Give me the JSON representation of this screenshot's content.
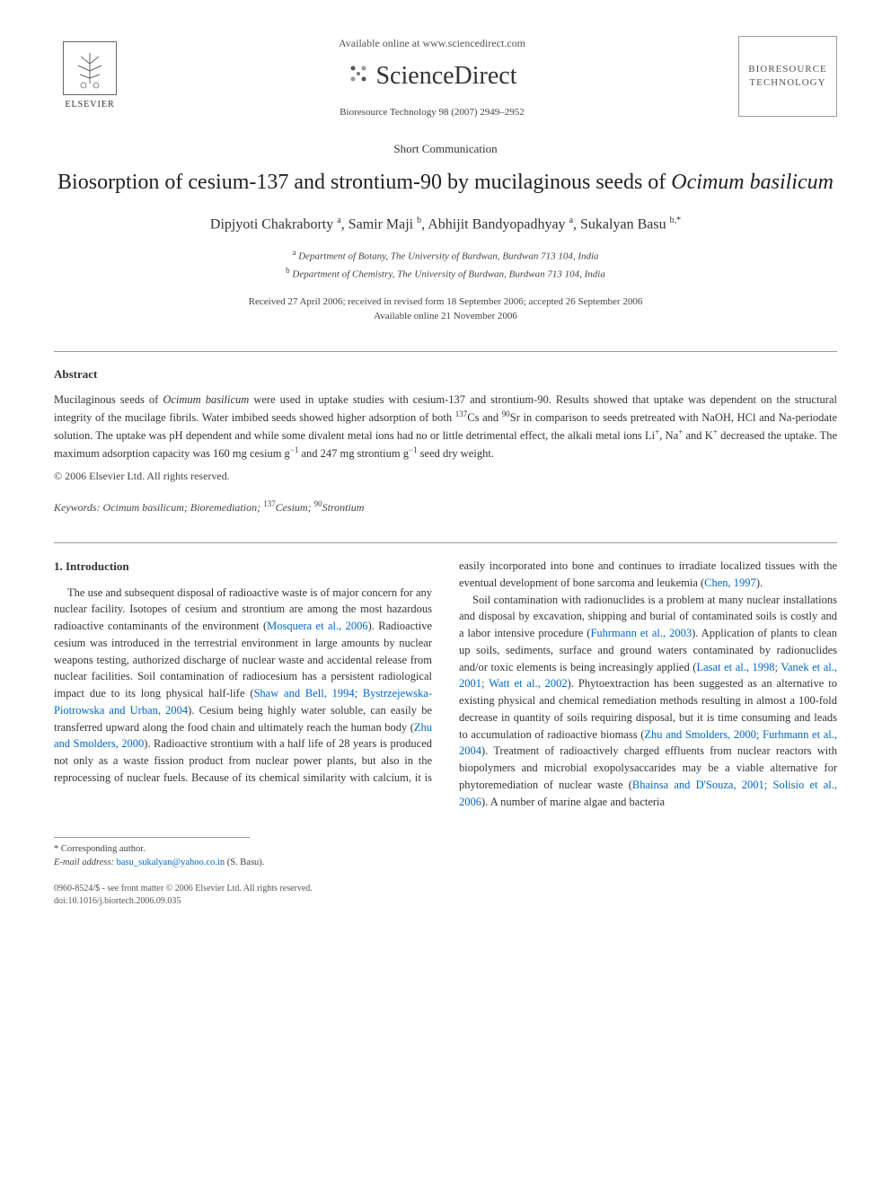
{
  "header": {
    "available_online": "Available online at www.sciencedirect.com",
    "sciencedirect": "ScienceDirect",
    "journal_ref": "Bioresource Technology 98 (2007) 2949–2952",
    "elsevier": "ELSEVIER",
    "journal_cover_line1": "BIORESOURCE",
    "journal_cover_line2": "TECHNOLOGY"
  },
  "article": {
    "type": "Short Communication",
    "title_prefix": "Biosorption of cesium-137 and strontium-90 by mucilaginous seeds of ",
    "title_species": "Ocimum basilicum",
    "authors_html": "Dipjyoti Chakraborty <sup>a</sup>, Samir Maji <sup>b</sup>, Abhijit Bandyopadhyay <sup>a</sup>, Sukalyan Basu <sup>b,*</sup>",
    "affiliation_a": "Department of Botany, The University of Burdwan, Burdwan 713 104, India",
    "affiliation_b": "Department of Chemistry, The University of Burdwan, Burdwan 713 104, India",
    "dates_line1": "Received 27 April 2006; received in revised form 18 September 2006; accepted 26 September 2006",
    "dates_line2": "Available online 21 November 2006"
  },
  "abstract": {
    "heading": "Abstract",
    "text": "Mucilaginous seeds of <i>Ocimum basilicum</i> were used in uptake studies with cesium-137 and strontium-90. Results showed that uptake was dependent on the structural integrity of the mucilage fibrils. Water imbibed seeds showed higher adsorption of both <sup>137</sup>Cs and <sup>90</sup>Sr in comparison to seeds pretreated with NaOH, HCl and Na-periodate solution. The uptake was pH dependent and while some divalent metal ions had no or little detrimental effect, the alkali metal ions Li<sup>+</sup>, Na<sup>+</sup> and K<sup>+</sup> decreased the uptake. The maximum adsorption capacity was 160 mg cesium g<sup>−1</sup> and 247 mg strontium g<sup>−1</sup> seed dry weight.",
    "copyright": "© 2006 Elsevier Ltd. All rights reserved.",
    "keywords": "<i>Keywords: Ocimum basilicum</i>; Bioremediation; <sup>137</sup>Cesium; <sup>90</sup>Strontium"
  },
  "body": {
    "section1_heading": "1. Introduction",
    "para1": "The use and subsequent disposal of radioactive waste is of major concern for any nuclear facility. Isotopes of cesium and strontium are among the most hazardous radioactive contaminants of the environment (<span class=\"cite\">Mosquera et al., 2006</span>). Radioactive cesium was introduced in the terrestrial environment in large amounts by nuclear weapons testing, authorized discharge of nuclear waste and accidental release from nuclear facilities. Soil contamination of radiocesium has a persistent radiological impact due to its long physical half-life (<span class=\"cite\">Shaw and Bell, 1994; Bystrzejewska-Piotrowska and Urban, 2004</span>). Cesium being highly water soluble, can easily be transferred upward along the food chain and ultimately reach the human body (<span class=\"cite\">Zhu and Smolders, 2000</span>). Radioactive strontium with a half life of 28 years is produced not only as a waste fission product from nuclear power plants, but also in the reprocessing of nuclear fuels. Because of its chemical similarity with calcium, it is easily incorporated into bone and continues to irradiate localized tissues with the eventual development of bone sarcoma and leukemia (<span class=\"cite\">Chen, 1997</span>).",
    "para2": "Soil contamination with radionuclides is a problem at many nuclear installations and disposal by excavation, shipping and burial of contaminated soils is costly and a labor intensive procedure (<span class=\"cite\">Fuhrmann et al., 2003</span>). Application of plants to clean up soils, sediments, surface and ground waters contaminated by radionuclides and/or toxic elements is being increasingly applied (<span class=\"cite\">Lasat et al., 1998; Vanek et al., 2001; Watt et al., 2002</span>). Phytoextraction has been suggested as an alternative to existing physical and chemical remediation methods resulting in almost a 100-fold decrease in quantity of soils requiring disposal, but it is time consuming and leads to accumulation of radioactive biomass (<span class=\"cite\">Zhu and Smolders, 2000; Furhmann et al., 2004</span>). Treatment of radioactively charged effluents from nuclear reactors with biopolymers and microbial exopolysaccarides may be a viable alternative for phytoremediation of nuclear waste (<span class=\"cite\">Bhainsa and D'Souza, 2001; Solisio et al., 2006</span>). A number of marine algae and bacteria"
  },
  "footer": {
    "corresponding_label": "* Corresponding author.",
    "email_label": "E-mail address:",
    "email": "basu_sukalyan@yahoo.co.in",
    "email_suffix": "(S. Basu).",
    "issn_line": "0960-8524/$ - see front matter © 2006 Elsevier Ltd. All rights reserved.",
    "doi_line": "doi:10.1016/j.biortech.2006.09.035"
  },
  "colors": {
    "text": "#333333",
    "cite": "#0066cc",
    "background": "#ffffff",
    "divider": "#999999"
  }
}
